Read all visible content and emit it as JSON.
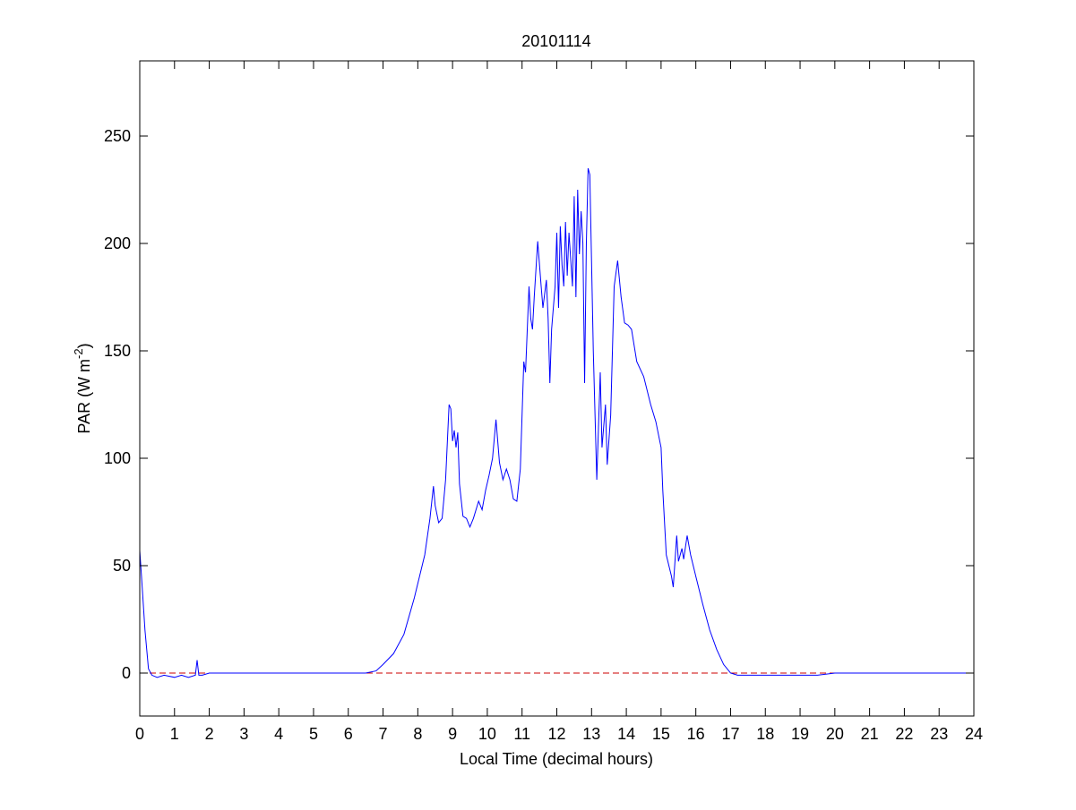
{
  "chart_data": {
    "type": "line",
    "title": "20101114",
    "xlabel": "Local Time (decimal hours)",
    "ylabel": [
      "PAR (W m",
      "-2",
      ")"
    ],
    "color": "#0000ff",
    "x": [
      0,
      0.05,
      0.15,
      0.25,
      0.35,
      0.5,
      0.7,
      1.0,
      1.2,
      1.4,
      1.6,
      1.65,
      1.7,
      1.8,
      2.0,
      6.5,
      6.8,
      7.0,
      7.3,
      7.6,
      7.9,
      8.2,
      8.35,
      8.45,
      8.5,
      8.6,
      8.7,
      8.8,
      8.9,
      8.95,
      9.0,
      9.05,
      9.1,
      9.15,
      9.2,
      9.3,
      9.4,
      9.5,
      9.6,
      9.75,
      9.85,
      9.95,
      10.05,
      10.15,
      10.25,
      10.35,
      10.45,
      10.55,
      10.65,
      10.75,
      10.85,
      10.95,
      11.05,
      11.1,
      11.2,
      11.25,
      11.3,
      11.35,
      11.45,
      11.55,
      11.6,
      11.7,
      11.75,
      11.8,
      11.85,
      11.95,
      12.0,
      12.05,
      12.1,
      12.15,
      12.2,
      12.25,
      12.3,
      12.35,
      12.45,
      12.5,
      12.55,
      12.6,
      12.65,
      12.7,
      12.75,
      12.8,
      12.85,
      12.9,
      12.95,
      13.05,
      13.15,
      13.25,
      13.3,
      13.4,
      13.45,
      13.55,
      13.65,
      13.75,
      13.85,
      13.95,
      14.05,
      14.15,
      14.3,
      14.5,
      14.7,
      14.85,
      15.0,
      15.05,
      15.15,
      15.3,
      15.35,
      15.45,
      15.5,
      15.6,
      15.65,
      15.75,
      15.85,
      16.0,
      16.2,
      16.4,
      16.6,
      16.8,
      17.0,
      17.2,
      17.5,
      18.5,
      19.5,
      20.0,
      24
    ],
    "values": [
      57,
      45,
      20,
      2,
      -1,
      -2,
      -1,
      -2,
      -1,
      -2,
      -1,
      6,
      -1,
      -1,
      0,
      0,
      1,
      4,
      9,
      18,
      35,
      55,
      72,
      87,
      78,
      70,
      72,
      90,
      125,
      123,
      108,
      113,
      105,
      112,
      88,
      73,
      72,
      68,
      72,
      80,
      76,
      85,
      92,
      100,
      118,
      98,
      90,
      95,
      90,
      81,
      80,
      95,
      145,
      140,
      180,
      165,
      160,
      175,
      201,
      180,
      170,
      183,
      165,
      135,
      160,
      180,
      205,
      170,
      208,
      190,
      180,
      210,
      185,
      205,
      180,
      222,
      175,
      225,
      195,
      215,
      200,
      135,
      200,
      235,
      232,
      150,
      90,
      140,
      105,
      125,
      97,
      120,
      180,
      192,
      175,
      163,
      162,
      160,
      145,
      138,
      125,
      117,
      105,
      85,
      55,
      45,
      40,
      64,
      52,
      58,
      53,
      64,
      55,
      45,
      32,
      20,
      11,
      4,
      0,
      -1,
      -1,
      -1,
      -1,
      0,
      0
    ],
    "reference_line": {
      "y": 0,
      "color": "#cc0000"
    },
    "xlim": [
      0,
      24
    ],
    "ylim": [
      -20,
      285
    ],
    "xticks": [
      0,
      1,
      2,
      3,
      4,
      5,
      6,
      7,
      8,
      9,
      10,
      11,
      12,
      13,
      14,
      15,
      16,
      17,
      18,
      19,
      20,
      21,
      22,
      23,
      24
    ],
    "yticks": [
      0,
      50,
      100,
      150,
      200,
      250
    ]
  }
}
